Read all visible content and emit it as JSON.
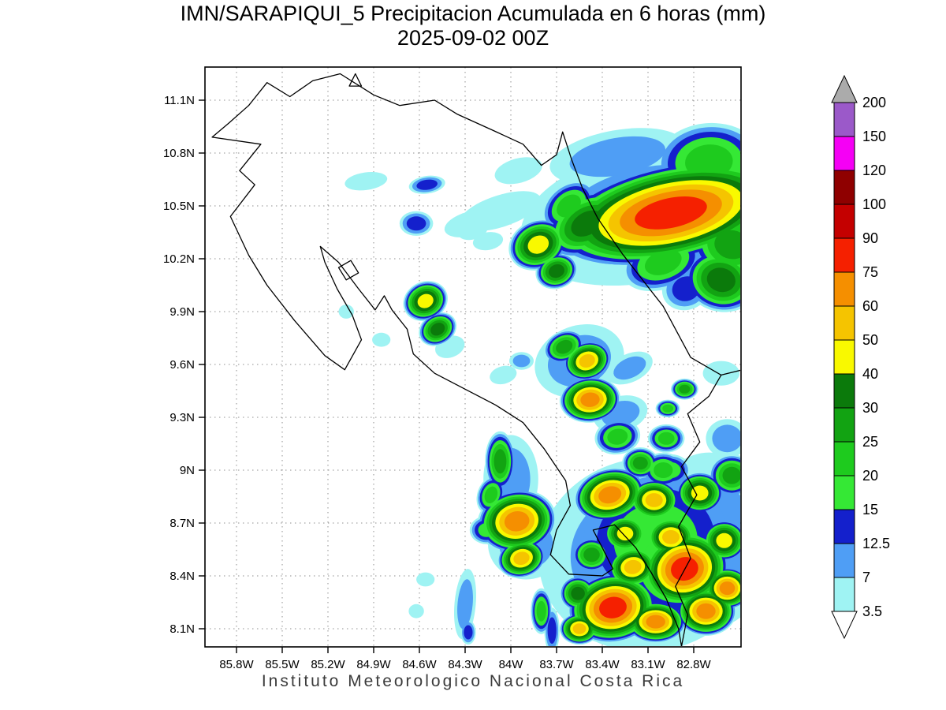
{
  "header": {
    "title": "IMN/SARAPIQUI_5 Precipitacion Acumulada en 6 horas (mm)",
    "subtitle": "2025-09-02 00Z"
  },
  "footer": {
    "text": "Instituto Meteorologico Nacional Costa Rica"
  },
  "chart_data": {
    "type": "heatmap",
    "title": "IMN/SARAPIQUI_5 Precipitacion Acumulada en 6 horas (mm)",
    "valid_time": "2025-09-02 00Z",
    "units": "mm",
    "region": "Costa Rica",
    "grid": true,
    "x_axis": {
      "tick_labels": [
        "85.8W",
        "85.5W",
        "85.2W",
        "84.9W",
        "84.6W",
        "84.3W",
        "84W",
        "83.7W",
        "83.4W",
        "83.1W",
        "82.8W"
      ],
      "tick_values_deg_w": [
        85.8,
        85.5,
        85.2,
        84.9,
        84.6,
        84.3,
        84.0,
        83.7,
        83.4,
        83.1,
        82.8
      ]
    },
    "y_axis": {
      "tick_labels": [
        "8.1N",
        "8.4N",
        "8.7N",
        "9N",
        "9.3N",
        "9.6N",
        "9.9N",
        "10.2N",
        "10.5N",
        "10.8N",
        "11.1N"
      ],
      "tick_values_deg_n": [
        8.1,
        8.4,
        8.7,
        9.0,
        9.3,
        9.6,
        9.9,
        10.2,
        10.5,
        10.8,
        11.1
      ]
    },
    "colorbar": {
      "position": "right",
      "levels": [
        3.5,
        7,
        12.5,
        15,
        20,
        25,
        30,
        40,
        50,
        60,
        75,
        90,
        100,
        120,
        150,
        200
      ],
      "segment_colors": [
        "#9ff3f3",
        "#4f9ef5",
        "#1420cc",
        "#35e835",
        "#1ecb1e",
        "#12a312",
        "#0b7a0b",
        "#f9f900",
        "#f5c400",
        "#f58f00",
        "#f52000",
        "#c40000",
        "#8f0000",
        "#f500f5",
        "#9b59c9"
      ],
      "above_color": "#ababab",
      "below_color": "#ffffff"
    },
    "cell_format": [
      "lon_deg_w",
      "lat_deg_n",
      "rx_deg",
      "ry_deg",
      "rotation_deg",
      "peak_mm"
    ],
    "cells": [
      [
        83.1,
        10.45,
        0.85,
        0.38,
        -12,
        7
      ],
      [
        82.8,
        10.5,
        0.55,
        0.3,
        -10,
        15
      ],
      [
        82.95,
        10.46,
        0.8,
        0.28,
        -12,
        75
      ],
      [
        83.5,
        10.4,
        0.3,
        0.17,
        -30,
        30
      ],
      [
        83.62,
        10.5,
        0.2,
        0.12,
        -40,
        20
      ],
      [
        83.3,
        10.78,
        0.45,
        0.15,
        -10,
        7
      ],
      [
        82.7,
        10.75,
        0.35,
        0.22,
        -5,
        20
      ],
      [
        82.55,
        10.28,
        0.28,
        0.2,
        10,
        25
      ],
      [
        82.62,
        10.08,
        0.25,
        0.18,
        15,
        30
      ],
      [
        83.0,
        10.18,
        0.28,
        0.15,
        -20,
        20
      ],
      [
        82.85,
        10.03,
        0.16,
        0.12,
        -20,
        12.5
      ],
      [
        83.82,
        10.28,
        0.2,
        0.14,
        -25,
        40
      ],
      [
        83.7,
        10.13,
        0.14,
        0.1,
        -20,
        30
      ],
      [
        83.95,
        10.7,
        0.16,
        0.07,
        -15,
        3.5
      ],
      [
        84.07,
        10.47,
        0.28,
        0.09,
        -18,
        3.5
      ],
      [
        84.26,
        10.4,
        0.18,
        0.07,
        -15,
        3.5
      ],
      [
        84.15,
        10.3,
        0.1,
        0.05,
        -10,
        3.5
      ],
      [
        84.95,
        10.64,
        0.14,
        0.05,
        -8,
        3.5
      ],
      [
        84.55,
        10.62,
        0.12,
        0.05,
        -8,
        12.5
      ],
      [
        84.62,
        10.4,
        0.11,
        0.07,
        0,
        12.5
      ],
      [
        84.25,
        10.36,
        0.1,
        0.05,
        -15,
        3.5
      ],
      [
        84.56,
        9.96,
        0.15,
        0.11,
        -25,
        40
      ],
      [
        84.48,
        9.8,
        0.13,
        0.09,
        -30,
        30
      ],
      [
        84.85,
        9.74,
        0.06,
        0.04,
        0,
        3.5
      ],
      [
        84.4,
        9.7,
        0.1,
        0.06,
        -20,
        3.5
      ],
      [
        85.08,
        9.9,
        0.05,
        0.04,
        0,
        3.5
      ],
      [
        83.55,
        9.62,
        0.3,
        0.2,
        -20,
        7
      ],
      [
        83.65,
        9.7,
        0.14,
        0.09,
        -25,
        25
      ],
      [
        83.5,
        9.62,
        0.16,
        0.11,
        -20,
        50
      ],
      [
        83.93,
        9.62,
        0.08,
        0.05,
        0,
        7
      ],
      [
        84.05,
        9.54,
        0.09,
        0.05,
        -15,
        3.5
      ],
      [
        83.22,
        9.58,
        0.16,
        0.08,
        -25,
        7
      ],
      [
        82.62,
        9.55,
        0.12,
        0.07,
        0,
        3.5
      ],
      [
        83.48,
        9.4,
        0.2,
        0.13,
        -5,
        60
      ],
      [
        83.28,
        9.32,
        0.18,
        0.1,
        -15,
        7
      ],
      [
        82.86,
        9.46,
        0.09,
        0.06,
        0,
        25
      ],
      [
        82.97,
        9.35,
        0.08,
        0.05,
        0,
        20
      ],
      [
        82.58,
        9.18,
        0.14,
        0.11,
        0,
        7
      ],
      [
        83.3,
        9.19,
        0.15,
        0.1,
        -10,
        20
      ],
      [
        82.98,
        9.18,
        0.12,
        0.08,
        0,
        20
      ],
      [
        83.15,
        9.04,
        0.12,
        0.09,
        0,
        25
      ],
      [
        83.0,
        9.0,
        0.14,
        0.1,
        0,
        20
      ],
      [
        84.07,
        9.05,
        0.1,
        0.17,
        0,
        25
      ],
      [
        84.13,
        8.86,
        0.09,
        0.11,
        20,
        20
      ],
      [
        84.0,
        8.95,
        0.18,
        0.25,
        0,
        7
      ],
      [
        83.96,
        8.71,
        0.26,
        0.18,
        -10,
        60
      ],
      [
        84.16,
        8.66,
        0.11,
        0.08,
        0,
        15
      ],
      [
        83.93,
        8.5,
        0.16,
        0.11,
        -15,
        50
      ],
      [
        83.9,
        8.58,
        0.25,
        0.2,
        0,
        7
      ],
      [
        84.3,
        8.24,
        0.07,
        0.2,
        5,
        7
      ],
      [
        84.28,
        8.08,
        0.05,
        0.07,
        0,
        12.5
      ],
      [
        84.56,
        8.38,
        0.06,
        0.04,
        0,
        3.5
      ],
      [
        84.62,
        8.2,
        0.05,
        0.04,
        0,
        3.5
      ],
      [
        83.1,
        8.52,
        0.72,
        0.55,
        -8,
        7
      ],
      [
        82.7,
        8.6,
        0.42,
        0.5,
        0,
        7
      ],
      [
        83.05,
        8.6,
        0.55,
        0.42,
        -10,
        15
      ],
      [
        82.9,
        8.45,
        0.4,
        0.32,
        -10,
        20
      ],
      [
        83.35,
        8.86,
        0.24,
        0.15,
        -15,
        60
      ],
      [
        83.06,
        8.83,
        0.17,
        0.12,
        0,
        50
      ],
      [
        82.76,
        8.87,
        0.16,
        0.12,
        0,
        40
      ],
      [
        82.55,
        8.97,
        0.15,
        0.12,
        0,
        25
      ],
      [
        83.25,
        8.64,
        0.15,
        0.11,
        0,
        40
      ],
      [
        82.95,
        8.62,
        0.17,
        0.12,
        0,
        50
      ],
      [
        82.6,
        8.6,
        0.15,
        0.12,
        0,
        40
      ],
      [
        83.47,
        8.52,
        0.13,
        0.1,
        0,
        25
      ],
      [
        83.2,
        8.45,
        0.17,
        0.12,
        -10,
        50
      ],
      [
        82.86,
        8.44,
        0.3,
        0.22,
        -15,
        75
      ],
      [
        82.58,
        8.33,
        0.16,
        0.12,
        0,
        60
      ],
      [
        83.33,
        8.22,
        0.3,
        0.2,
        -10,
        75
      ],
      [
        82.72,
        8.2,
        0.2,
        0.14,
        0,
        60
      ],
      [
        83.05,
        8.14,
        0.2,
        0.12,
        0,
        60
      ],
      [
        83.56,
        8.3,
        0.12,
        0.1,
        0,
        30
      ],
      [
        83.55,
        8.1,
        0.13,
        0.09,
        0,
        50
      ],
      [
        83.8,
        8.2,
        0.07,
        0.13,
        0,
        20
      ],
      [
        83.73,
        8.09,
        0.05,
        0.13,
        0,
        12.5
      ],
      [
        82.95,
        9.0,
        0.13,
        0.09,
        0,
        15
      ]
    ],
    "map": {
      "outlines": [
        {
          "name": "nicaragua-border-and-caribbean-coast",
          "closed": false,
          "points": [
            [
              85.72,
              11.07
            ],
            [
              85.6,
              11.2
            ],
            [
              85.45,
              11.12
            ],
            [
              85.3,
              11.21
            ],
            [
              85.12,
              11.25
            ],
            [
              84.9,
              11.13
            ],
            [
              84.73,
              11.07
            ],
            [
              84.5,
              11.1
            ],
            [
              84.35,
              11.02
            ],
            [
              84.12,
              10.93
            ],
            [
              83.92,
              10.85
            ],
            [
              83.8,
              10.73
            ],
            [
              83.7,
              10.79
            ],
            [
              83.66,
              10.92
            ],
            [
              83.6,
              10.76
            ],
            [
              83.53,
              10.6
            ],
            [
              83.43,
              10.43
            ],
            [
              83.27,
              10.23
            ],
            [
              83.1,
              10.04
            ],
            [
              83.0,
              9.93
            ],
            [
              82.82,
              9.64
            ],
            [
              82.62,
              9.54
            ],
            [
              82.48,
              9.57
            ]
          ]
        },
        {
          "name": "panama-border",
          "closed": false,
          "points": [
            [
              82.62,
              9.54
            ],
            [
              82.7,
              9.42
            ],
            [
              82.84,
              9.32
            ],
            [
              82.76,
              9.16
            ],
            [
              82.88,
              9.02
            ],
            [
              82.78,
              8.86
            ],
            [
              82.9,
              8.68
            ],
            [
              82.82,
              8.5
            ],
            [
              82.92,
              8.34
            ],
            [
              82.84,
              8.18
            ],
            [
              82.88,
              8.0
            ]
          ]
        },
        {
          "name": "pacific-coast",
          "closed": false,
          "points": [
            [
              85.72,
              11.07
            ],
            [
              85.85,
              10.97
            ],
            [
              85.96,
              10.89
            ],
            [
              85.64,
              10.85
            ],
            [
              85.78,
              10.7
            ],
            [
              85.68,
              10.62
            ],
            [
              85.84,
              10.44
            ],
            [
              85.72,
              10.22
            ],
            [
              85.6,
              10.05
            ],
            [
              85.42,
              9.85
            ],
            [
              85.22,
              9.65
            ],
            [
              85.09,
              9.57
            ],
            [
              84.98,
              9.74
            ],
            [
              85.04,
              9.88
            ],
            [
              85.14,
              10.03
            ],
            [
              85.22,
              10.18
            ],
            [
              85.25,
              10.27
            ],
            [
              85.13,
              10.18
            ],
            [
              85.0,
              10.03
            ],
            [
              84.89,
              9.91
            ],
            [
              84.83,
              9.99
            ],
            [
              84.78,
              9.91
            ],
            [
              84.68,
              9.8
            ],
            [
              84.64,
              9.66
            ],
            [
              84.5,
              9.55
            ],
            [
              84.3,
              9.46
            ],
            [
              84.1,
              9.37
            ],
            [
              83.92,
              9.27
            ],
            [
              83.78,
              9.12
            ],
            [
              83.64,
              8.94
            ],
            [
              83.61,
              8.8
            ],
            [
              83.7,
              8.66
            ],
            [
              83.74,
              8.52
            ],
            [
              83.62,
              8.41
            ],
            [
              83.4,
              8.4
            ],
            [
              83.33,
              8.44
            ],
            [
              83.4,
              8.56
            ],
            [
              83.46,
              8.66
            ],
            [
              83.32,
              8.69
            ],
            [
              83.18,
              8.56
            ],
            [
              83.08,
              8.42
            ],
            [
              82.98,
              8.27
            ],
            [
              82.9,
              8.1
            ],
            [
              82.88,
              8.0
            ]
          ]
        },
        {
          "name": "isla-chira",
          "closed": true,
          "points": [
            [
              85.13,
              10.15
            ],
            [
              85.05,
              10.19
            ],
            [
              85.0,
              10.12
            ],
            [
              85.08,
              10.08
            ]
          ]
        },
        {
          "name": "lake-island-triangle",
          "closed": true,
          "points": [
            [
              85.02,
              11.25
            ],
            [
              84.98,
              11.18
            ],
            [
              85.06,
              11.18
            ]
          ]
        }
      ]
    }
  }
}
